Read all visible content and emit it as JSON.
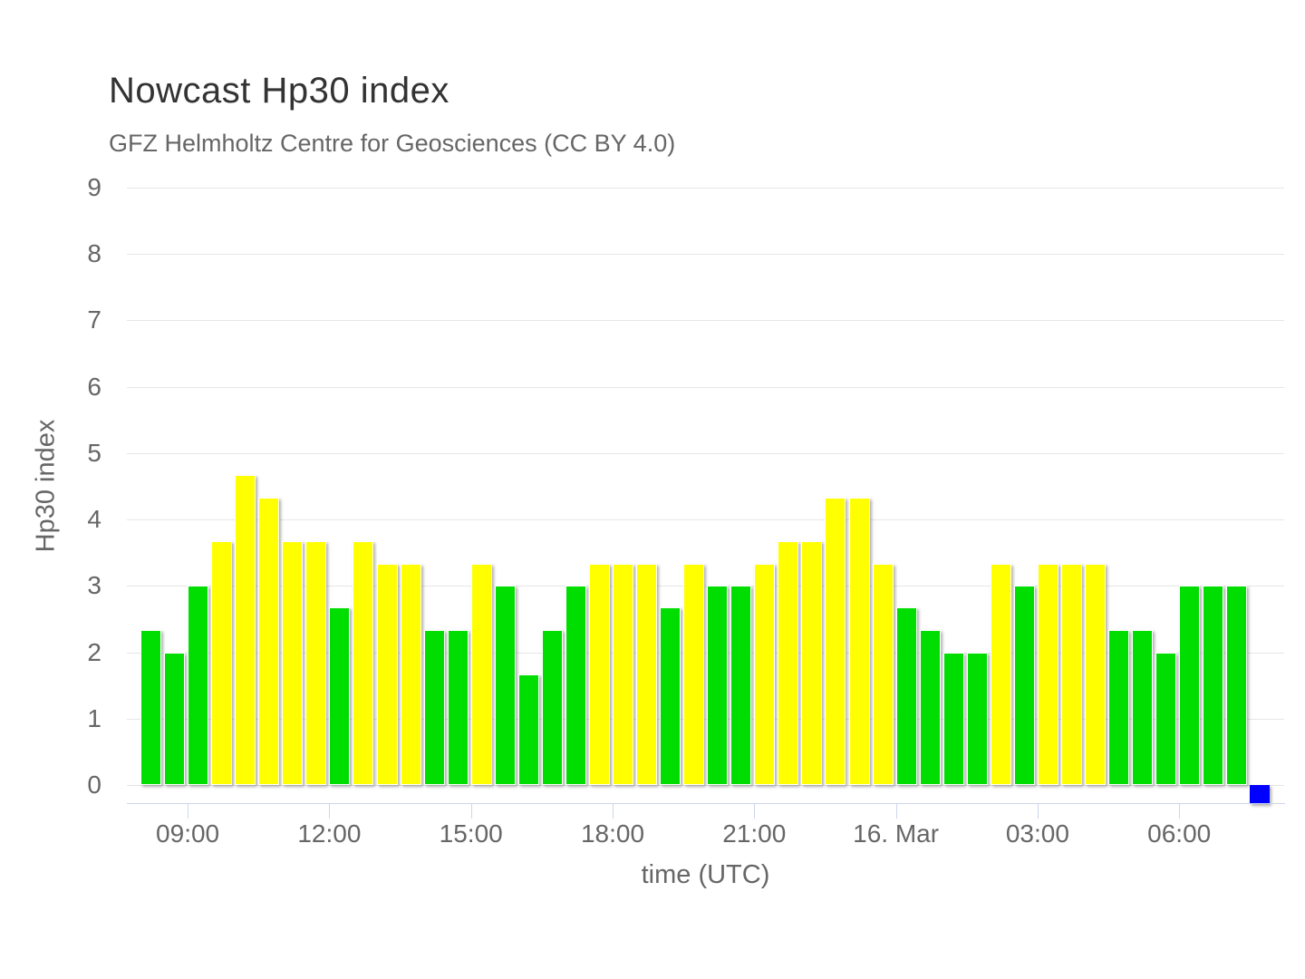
{
  "header": {
    "title": "Nowcast Hp30 index",
    "subtitle": "GFZ Helmholtz Centre for Geosciences (CC BY 4.0)"
  },
  "colors": {
    "quiet_green": "#00dd00",
    "active_yellow": "#ffff00",
    "marker_blue": "#0000ff",
    "grid": "#e6e6e6",
    "axis_line": "#ccd6eb",
    "title_text": "#333333",
    "muted_text": "#666666"
  },
  "chart_data": {
    "type": "bar",
    "title": "Nowcast Hp30 index",
    "subtitle": "GFZ Helmholtz Centre for Geosciences (CC BY 4.0)",
    "xlabel": "time (UTC)",
    "ylabel": "Hp30 index",
    "ylim": [
      0,
      9
    ],
    "y_ticks": [
      0,
      1,
      2,
      3,
      4,
      5,
      6,
      7,
      8,
      9
    ],
    "grid": true,
    "legend": false,
    "bar_interval_minutes": 30,
    "points": [
      {
        "time": "08:00",
        "value": 2.33,
        "color": "#00dd00"
      },
      {
        "time": "08:30",
        "value": 2.0,
        "color": "#00dd00"
      },
      {
        "time": "09:00",
        "value": 3.0,
        "color": "#00dd00"
      },
      {
        "time": "09:30",
        "value": 3.67,
        "color": "#ffff00"
      },
      {
        "time": "10:00",
        "value": 4.67,
        "color": "#ffff00"
      },
      {
        "time": "10:30",
        "value": 4.33,
        "color": "#ffff00"
      },
      {
        "time": "11:00",
        "value": 3.67,
        "color": "#ffff00"
      },
      {
        "time": "11:30",
        "value": 3.67,
        "color": "#ffff00"
      },
      {
        "time": "12:00",
        "value": 2.67,
        "color": "#00dd00"
      },
      {
        "time": "12:30",
        "value": 3.67,
        "color": "#ffff00"
      },
      {
        "time": "13:00",
        "value": 3.33,
        "color": "#ffff00"
      },
      {
        "time": "13:30",
        "value": 3.33,
        "color": "#ffff00"
      },
      {
        "time": "14:00",
        "value": 2.33,
        "color": "#00dd00"
      },
      {
        "time": "14:30",
        "value": 2.33,
        "color": "#00dd00"
      },
      {
        "time": "15:00",
        "value": 3.33,
        "color": "#ffff00"
      },
      {
        "time": "15:30",
        "value": 3.0,
        "color": "#00dd00"
      },
      {
        "time": "16:00",
        "value": 1.67,
        "color": "#00dd00"
      },
      {
        "time": "16:30",
        "value": 2.33,
        "color": "#00dd00"
      },
      {
        "time": "17:00",
        "value": 3.0,
        "color": "#00dd00"
      },
      {
        "time": "17:30",
        "value": 3.33,
        "color": "#ffff00"
      },
      {
        "time": "18:00",
        "value": 3.33,
        "color": "#ffff00"
      },
      {
        "time": "18:30",
        "value": 3.33,
        "color": "#ffff00"
      },
      {
        "time": "19:00",
        "value": 2.67,
        "color": "#00dd00"
      },
      {
        "time": "19:30",
        "value": 3.33,
        "color": "#ffff00"
      },
      {
        "time": "20:00",
        "value": 3.0,
        "color": "#00dd00"
      },
      {
        "time": "20:30",
        "value": 3.0,
        "color": "#00dd00"
      },
      {
        "time": "21:00",
        "value": 3.33,
        "color": "#ffff00"
      },
      {
        "time": "21:30",
        "value": 3.67,
        "color": "#ffff00"
      },
      {
        "time": "22:00",
        "value": 3.67,
        "color": "#ffff00"
      },
      {
        "time": "22:30",
        "value": 4.33,
        "color": "#ffff00"
      },
      {
        "time": "23:00",
        "value": 4.33,
        "color": "#ffff00"
      },
      {
        "time": "23:30",
        "value": 3.33,
        "color": "#ffff00"
      },
      {
        "time": "00:00",
        "value": 2.67,
        "color": "#00dd00"
      },
      {
        "time": "00:30",
        "value": 2.33,
        "color": "#00dd00"
      },
      {
        "time": "01:00",
        "value": 2.0,
        "color": "#00dd00"
      },
      {
        "time": "01:30",
        "value": 2.0,
        "color": "#00dd00"
      },
      {
        "time": "02:00",
        "value": 3.33,
        "color": "#ffff00"
      },
      {
        "time": "02:30",
        "value": 3.0,
        "color": "#00dd00"
      },
      {
        "time": "03:00",
        "value": 3.33,
        "color": "#ffff00"
      },
      {
        "time": "03:30",
        "value": 3.33,
        "color": "#ffff00"
      },
      {
        "time": "04:00",
        "value": 3.33,
        "color": "#ffff00"
      },
      {
        "time": "04:30",
        "value": 2.33,
        "color": "#00dd00"
      },
      {
        "time": "05:00",
        "value": 2.33,
        "color": "#00dd00"
      },
      {
        "time": "05:30",
        "value": 2.0,
        "color": "#00dd00"
      },
      {
        "time": "06:00",
        "value": 3.0,
        "color": "#00dd00"
      },
      {
        "time": "06:30",
        "value": 3.0,
        "color": "#00dd00"
      },
      {
        "time": "07:00",
        "value": 3.0,
        "color": "#00dd00"
      }
    ],
    "x_tick_marks": [
      {
        "label": "09:00",
        "point_index": 2
      },
      {
        "label": "12:00",
        "point_index": 8
      },
      {
        "label": "15:00",
        "point_index": 14
      },
      {
        "label": "18:00",
        "point_index": 20
      },
      {
        "label": "21:00",
        "point_index": 26
      },
      {
        "label": "16. Mar",
        "point_index": 32
      },
      {
        "label": "03:00",
        "point_index": 38
      },
      {
        "label": "06:00",
        "point_index": 44
      }
    ],
    "current_interval_marker": {
      "time": "07:30",
      "color": "#0000ff",
      "point_index": 47
    }
  }
}
